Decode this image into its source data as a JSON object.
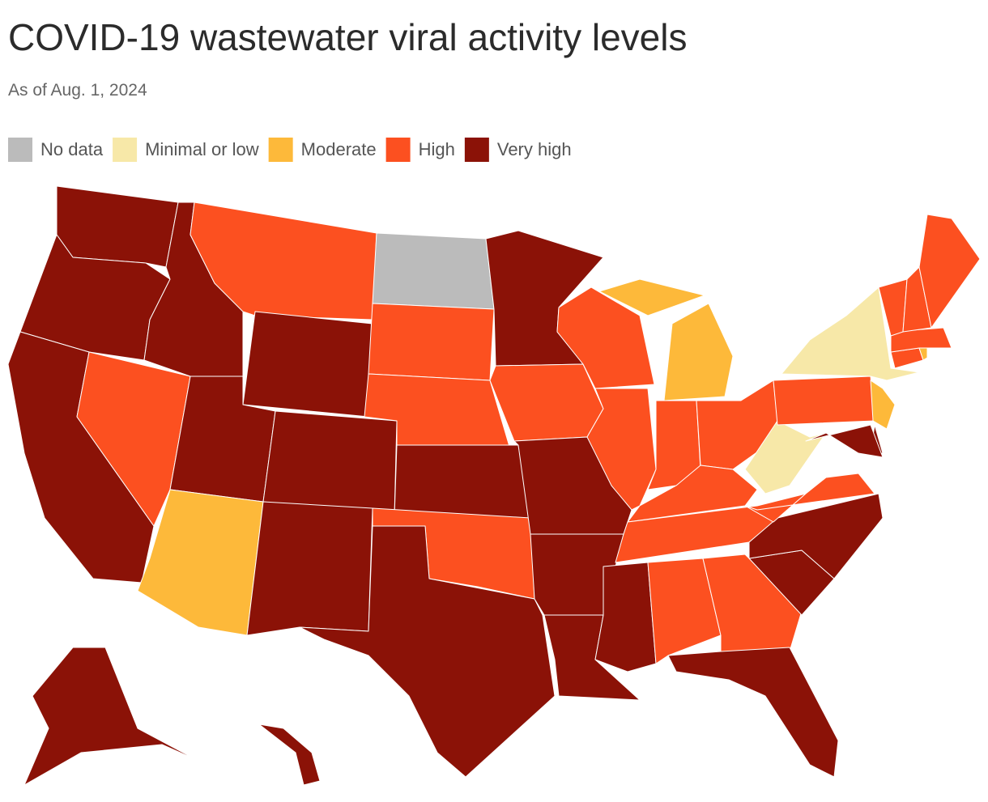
{
  "chart_data": {
    "type": "choropleth",
    "title": "COVID-19 wastewater viral activity levels",
    "subtitle": "As of Aug. 1, 2024",
    "legend": [
      {
        "label": "No data",
        "color": "#bbbbbb"
      },
      {
        "label": "Minimal or low",
        "color": "#f7e8a8"
      },
      {
        "label": "Moderate",
        "color": "#fdb93a"
      },
      {
        "label": "High",
        "color": "#fc5020"
      },
      {
        "label": "Very high",
        "color": "#8b1207"
      }
    ],
    "region_levels": [
      4,
      4,
      4,
      3,
      4,
      3,
      4,
      4,
      2,
      4,
      4,
      0,
      3,
      3,
      4,
      3,
      4,
      4,
      3,
      4,
      4,
      4,
      3,
      3,
      2,
      2,
      3,
      3,
      3,
      3,
      4,
      3,
      3,
      4,
      4,
      4,
      3,
      1,
      3,
      1,
      2,
      4,
      4,
      3,
      2,
      3,
      3,
      3,
      3,
      4,
      4
    ]
  }
}
